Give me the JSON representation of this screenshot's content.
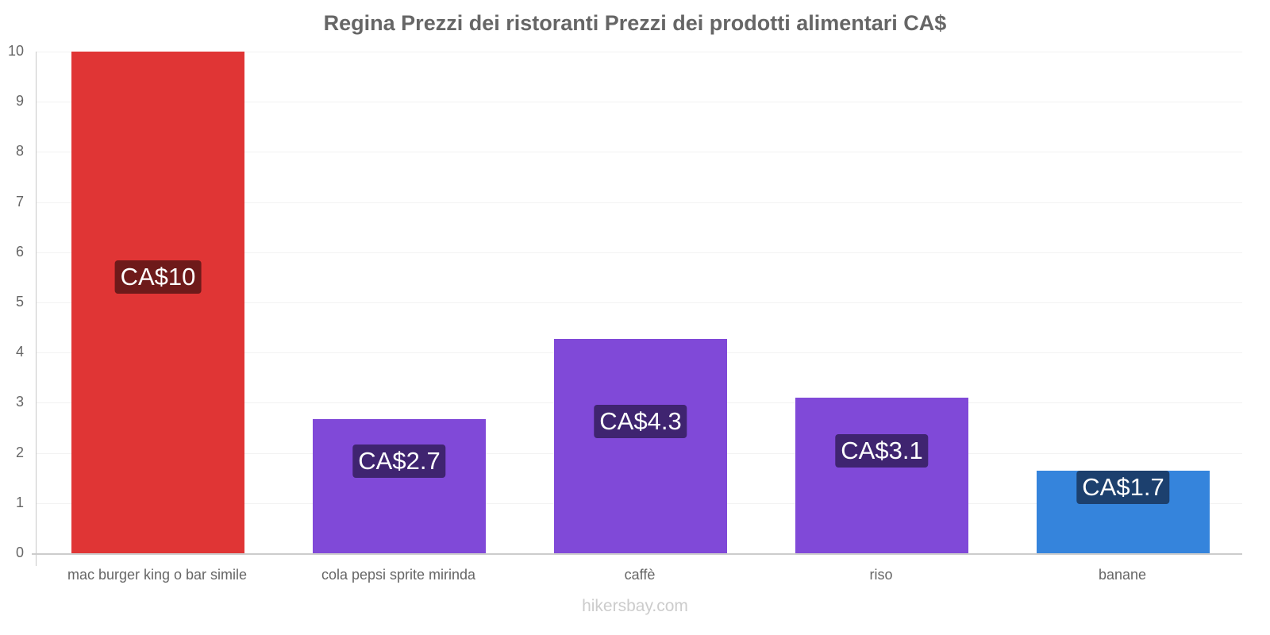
{
  "title": "Regina Prezzi dei ristoranti Prezzi dei prodotti alimentari CA$",
  "footer": "hikersbay.com",
  "yaxis": {
    "ticks": [
      "0",
      "1",
      "2",
      "3",
      "4",
      "5",
      "6",
      "7",
      "8",
      "9",
      "10"
    ]
  },
  "bars": [
    {
      "category": "mac burger king o bar simile",
      "value": 10,
      "label": "CA$10",
      "color": "#e03535",
      "label_bg": "#6e1a1a",
      "label_y": 5.5
    },
    {
      "category": "cola pepsi sprite mirinda",
      "value": 2.68,
      "label": "CA$2.7",
      "color": "#8049d8",
      "label_bg": "#3f2470",
      "label_y": 1.84
    },
    {
      "category": "caffè",
      "value": 4.27,
      "label": "CA$4.3",
      "color": "#8049d8",
      "label_bg": "#3f2470",
      "label_y": 2.63
    },
    {
      "category": "riso",
      "value": 3.1,
      "label": "CA$3.1",
      "color": "#8049d8",
      "label_bg": "#3f2470",
      "label_y": 2.04
    },
    {
      "category": "banane",
      "value": 1.65,
      "label": "CA$1.7",
      "color": "#3584dc",
      "label_bg": "#1c406e",
      "label_y": 1.32
    }
  ],
  "chart_data": {
    "type": "bar",
    "title": "Regina Prezzi dei ristoranti Prezzi dei prodotti alimentari CA$",
    "categories": [
      "mac burger king o bar simile",
      "cola pepsi sprite mirinda",
      "caffè",
      "riso",
      "banane"
    ],
    "values": [
      10,
      2.7,
      4.3,
      3.1,
      1.7
    ],
    "data_labels": [
      "CA$10",
      "CA$2.7",
      "CA$4.3",
      "CA$3.1",
      "CA$1.7"
    ],
    "xlabel": "",
    "ylabel": "",
    "ylim": [
      0,
      10
    ],
    "yticks": [
      0,
      1,
      2,
      3,
      4,
      5,
      6,
      7,
      8,
      9,
      10
    ],
    "grid": true,
    "legend": false,
    "colors": [
      "#e03535",
      "#8049d8",
      "#8049d8",
      "#8049d8",
      "#3584dc"
    ]
  }
}
